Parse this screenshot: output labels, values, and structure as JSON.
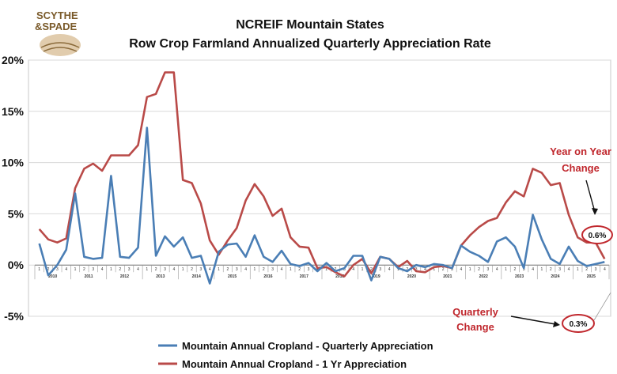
{
  "logo": {
    "line1": "SCYTHE",
    "line2": "&SPADE"
  },
  "chart_data": {
    "type": "line",
    "title": "NCREIF Mountain States",
    "subtitle": "Row Crop Farmland Annualized Quarterly Appreciation Rate",
    "ylim": [
      -5,
      20
    ],
    "yticks": [
      -5,
      0,
      5,
      10,
      15,
      20
    ],
    "ytick_labels": [
      "-5%",
      "0%",
      "5%",
      "10%",
      "15%",
      "20%"
    ],
    "quarters": [
      "1",
      "2",
      "3",
      "4"
    ],
    "years": [
      "2010",
      "2011",
      "2012",
      "2013",
      "2014",
      "2015",
      "2016",
      "2017",
      "2018",
      "2019",
      "2020",
      "2021",
      "2022",
      "2023",
      "2024",
      "2025"
    ],
    "series": [
      {
        "name": "Mountain Annual Cropland - Quarterly Appreciation",
        "color": "#4a7eb5",
        "values": [
          2.1,
          -1.0,
          0.0,
          1.5,
          7.0,
          0.8,
          0.6,
          0.7,
          8.7,
          0.8,
          0.7,
          1.7,
          13.4,
          0.9,
          2.8,
          1.8,
          2.7,
          0.7,
          0.9,
          -1.8,
          1.3,
          2.0,
          2.1,
          0.8,
          2.9,
          0.8,
          0.3,
          1.4,
          0.1,
          -0.1,
          0.2,
          -0.6,
          0.2,
          -0.6,
          -0.3,
          0.9,
          0.9,
          -1.5,
          0.8,
          0.6,
          -0.3,
          -0.6,
          0.0,
          -0.2,
          0.1,
          0.0,
          -0.3,
          1.9,
          1.3,
          0.9,
          0.3,
          2.3,
          2.7,
          1.8,
          -0.3,
          4.9,
          2.5,
          0.6,
          0.1,
          1.8,
          0.4,
          -0.1,
          0.1,
          0.3
        ]
      },
      {
        "name": "Mountain Annual Cropland -  1 Yr Appreciation",
        "color": "#b94a48",
        "values": [
          3.5,
          2.5,
          2.2,
          2.6,
          7.5,
          9.4,
          9.9,
          9.2,
          10.7,
          10.7,
          10.7,
          11.7,
          16.4,
          16.7,
          18.8,
          18.8,
          8.3,
          8.0,
          6.0,
          2.4,
          1.0,
          2.4,
          3.6,
          6.3,
          7.9,
          6.7,
          4.8,
          5.5,
          2.7,
          1.8,
          1.7,
          -0.3,
          -0.2,
          -0.7,
          -1.1,
          0.0,
          0.6,
          -0.8,
          0.8,
          0.6,
          -0.2,
          0.4,
          -0.6,
          -0.7,
          -0.2,
          -0.1,
          -0.3,
          1.9,
          2.9,
          3.7,
          4.3,
          4.6,
          6.1,
          7.2,
          6.7,
          9.4,
          9.0,
          7.8,
          8.0,
          4.9,
          2.7,
          2.2,
          2.2,
          0.6
        ]
      }
    ],
    "legend": [
      "Mountain Annual Cropland - Quarterly Appreciation",
      "Mountain Annual Cropland -  1 Yr Appreciation"
    ],
    "annotations": {
      "yoy_label_line1": "Year on Year",
      "yoy_label_line2": "Change",
      "yoy_value": "0.6%",
      "quarterly_label_line1": "Quarterly",
      "quarterly_label_line2": "Change",
      "quarterly_value": "0.3%"
    }
  }
}
